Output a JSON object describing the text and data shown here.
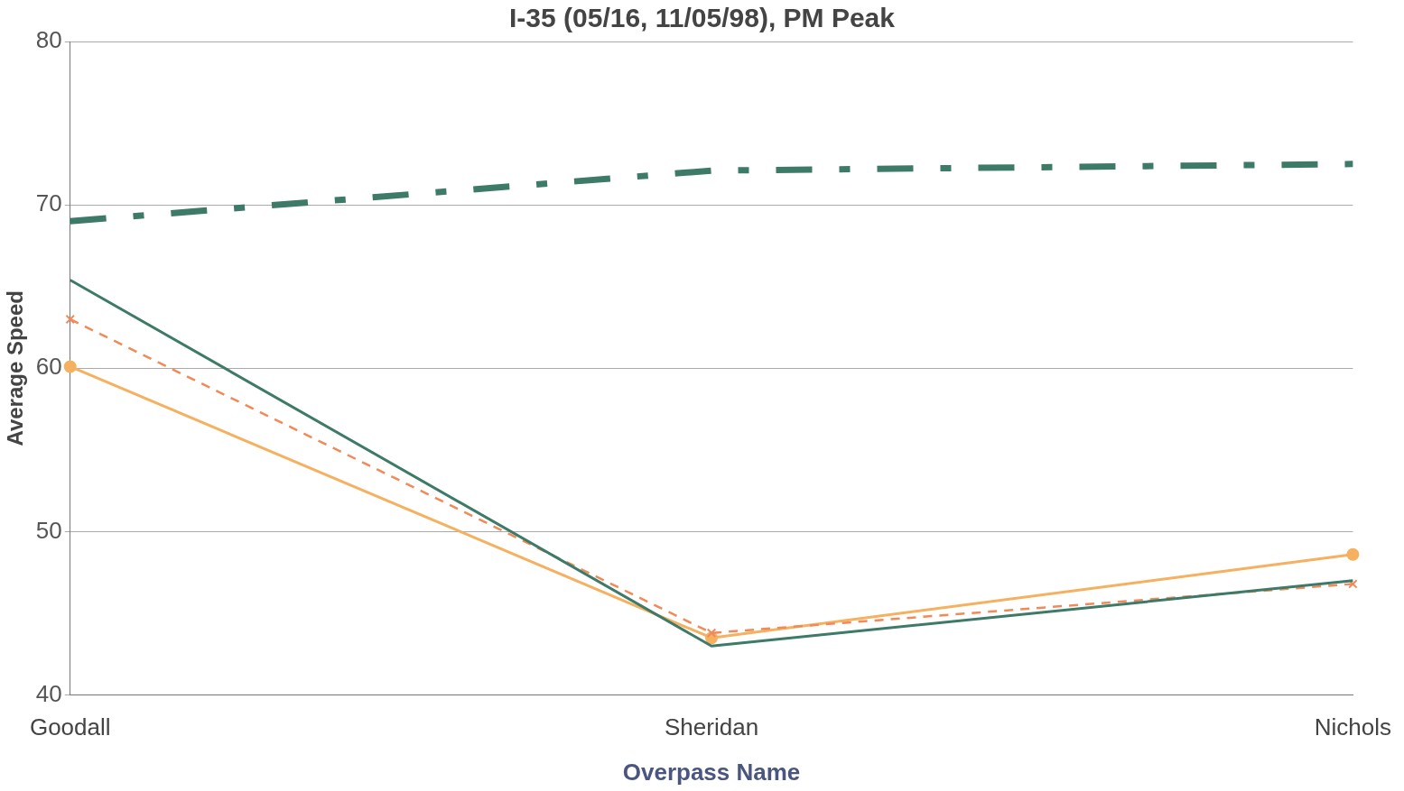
{
  "chart_data": {
    "type": "line",
    "title": "I-35 (05/16, 11/05/98), PM Peak",
    "xlabel": "Overpass Name",
    "ylabel": "Average Speed",
    "categories": [
      "Goodall",
      "Sheridan",
      "Nichols"
    ],
    "series": [
      {
        "color": "#3d7a68",
        "values": [
          69.0,
          72.1,
          72.5
        ],
        "line_style": "dashdot",
        "marker": "none"
      },
      {
        "color": "#3d7a68",
        "values": [
          65.4,
          43.0,
          47.0
        ],
        "line_style": "solid",
        "marker": "none"
      },
      {
        "color": "#f08a5a",
        "values": [
          63.0,
          43.8,
          46.8
        ],
        "line_style": "dashed",
        "marker": "cross"
      },
      {
        "color": "#f5b060",
        "values": [
          60.1,
          43.5,
          48.6
        ],
        "line_style": "solid",
        "marker": "circle"
      }
    ],
    "ylim": [
      40,
      80
    ],
    "yticks": [
      40,
      50,
      60,
      70,
      80
    ],
    "grid": "y",
    "legend": false
  }
}
